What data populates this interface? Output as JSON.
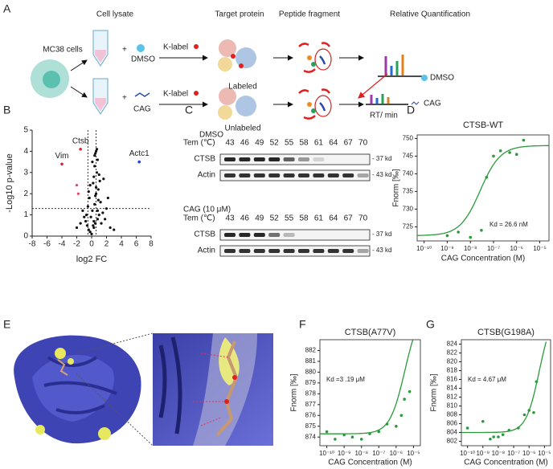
{
  "panel_labels": [
    "A",
    "B",
    "C",
    "D",
    "E",
    "F",
    "G"
  ],
  "schematic": {
    "cell_lysate": "Cell lysate",
    "target_protein": "Target protein",
    "peptide_fragment": "Peptide fragment",
    "relative_quantification": "Relative Quantification",
    "cells": "MC38  cells",
    "dmso": "DMSO",
    "cag": "CAG",
    "k_label_1": "K-label",
    "k_label_2": "K-label",
    "labeled": "Labeled",
    "unlabeled": "Unlabeled",
    "dmso_right": "DMSO",
    "cag_right": "CAG",
    "rt": "RT/ min"
  },
  "blot": {
    "tem_label": "Tem (℃)",
    "temperatures": [
      43,
      46,
      49,
      52,
      55,
      58,
      61,
      64,
      67,
      70
    ],
    "conditions": [
      {
        "label": "DMSO",
        "rows": [
          {
            "name": "CTSB",
            "size": "- 37 kd"
          },
          {
            "name": "Actin",
            "size": "- 43 kd"
          }
        ]
      },
      {
        "label": "CAG (10 μM)",
        "rows": [
          {
            "name": "CTSB",
            "size": "- 37 kd"
          },
          {
            "name": "Actin",
            "size": "- 43 kd"
          }
        ]
      }
    ]
  },
  "chart_data": [
    {
      "type": "scatter",
      "xlabel": "log2 FC",
      "ylabel": "-Log10 p-value",
      "xlim": [
        -8,
        8
      ],
      "ylim": [
        0,
        5
      ],
      "xticks": [
        -8,
        -6,
        -4,
        -2,
        0,
        2,
        4,
        6,
        8
      ],
      "yticks": [
        0,
        1,
        2,
        3,
        4,
        5
      ],
      "guides": {
        "x": [
          -0.5,
          0.6
        ],
        "y": 1.3
      },
      "series": [
        {
          "color": "#111111",
          "x": [
            -0.2,
            0.3,
            0.5,
            -0.4,
            0.8,
            1.0,
            -0.6,
            0.1,
            0.4,
            -0.1,
            0.6,
            1.2,
            -0.8,
            0.2,
            0.9,
            -0.3,
            0.7,
            1.5,
            -1.0,
            0.0,
            0.5,
            0.3,
            -0.5,
            1.1,
            0.8,
            2.0,
            -1.2,
            0.4,
            0.6,
            -0.2,
            1.3,
            0.2,
            0.9,
            -0.7,
            1.8,
            2.5,
            -1.5,
            3.0,
            0.7,
            0.4,
            0.1,
            1.0,
            0.6,
            -0.4,
            0.8,
            0.3,
            2.2,
            -2.0,
            1.6,
            0.5
          ],
          "values": [
            0.2,
            0.4,
            0.6,
            0.3,
            0.8,
            1.0,
            0.5,
            1.2,
            1.5,
            0.9,
            2.0,
            1.6,
            0.7,
            2.5,
            2.2,
            1.8,
            3.0,
            1.1,
            0.9,
            0.1,
            1.9,
            2.8,
            1.4,
            2.6,
            3.6,
            1.3,
            1.2,
            3.3,
            4.0,
            2.4,
            0.6,
            0.5,
            1.7,
            1.0,
            0.8,
            0.4,
            0.6,
            0.3,
            4.1,
            3.8,
            3.5,
            2.9,
            2.3,
            2.1,
            1.2,
            0.7,
            1.8,
            0.4,
            2.7,
            3.9
          ]
        },
        {
          "color": "#e8446a",
          "x": [
            -2.0,
            -1.8
          ],
          "values": [
            2.4,
            2.0
          ]
        }
      ],
      "annotations": [
        {
          "text": "Actc1",
          "x": 6.4,
          "y": 3.5,
          "color": "#2b3fd4"
        },
        {
          "text": "Ctsb",
          "x": -1.5,
          "y": 4.1,
          "color": "#e02030"
        },
        {
          "text": "Vim",
          "x": -4.0,
          "y": 3.4,
          "color": "#e02030"
        }
      ]
    },
    {
      "type": "binding",
      "title": "CTSB-WT",
      "xlabel": "CAG Concentration (M)",
      "ylabel": "Fnorm [‰]",
      "xscale": "log",
      "xlim": [
        5e-11,
        2.5e-05
      ],
      "ylim": [
        721,
        751
      ],
      "xticks": [
        {
          "value": 1e-10,
          "label": "10⁻¹⁰"
        },
        {
          "value": 1e-09,
          "label": "10⁻⁹"
        },
        {
          "value": 1e-08,
          "label": "10⁻⁸"
        },
        {
          "value": 1e-07,
          "label": "10⁻⁷"
        },
        {
          "value": 1e-06,
          "label": "10⁻⁶"
        },
        {
          "value": 1e-05,
          "label": "10⁻⁵"
        }
      ],
      "yticks": [
        725,
        730,
        735,
        740,
        745,
        750
      ],
      "series": [
        {
          "color": "#2a9a3a",
          "x": [
            1e-09,
            3e-09,
            1e-08,
            3e-08,
            5e-08,
            1e-07,
            2e-07,
            5e-07,
            1e-06,
            2e-06
          ],
          "values": [
            722.5,
            723.5,
            722,
            724,
            739,
            745,
            746.5,
            746,
            745.5,
            749.5
          ]
        }
      ],
      "fit": {
        "bottom": 722.5,
        "top": 748,
        "kd": 2.66e-08,
        "color": "#2a9a3a"
      },
      "annotation": "Kd = 26.6 nM"
    },
    {
      "type": "binding",
      "title": "CTSB(A77V)",
      "xlabel": "CAG Concentration (M)",
      "ylabel": "Fnorm [‰]",
      "xscale": "log",
      "xlim": [
        4e-11,
        2.5e-05
      ],
      "ylim": [
        873.2,
        883
      ],
      "xticks": [
        {
          "value": 1e-10,
          "label": "10⁻¹⁰"
        },
        {
          "value": 1e-09,
          "label": "10⁻⁹"
        },
        {
          "value": 1e-08,
          "label": "10⁻⁸"
        },
        {
          "value": 1e-07,
          "label": "10⁻⁷"
        },
        {
          "value": 1e-06,
          "label": "10⁻⁶"
        },
        {
          "value": 1e-05,
          "label": "10⁻⁵"
        }
      ],
      "yticks": [
        874,
        875,
        876,
        877,
        878,
        879,
        880,
        881,
        882
      ],
      "series": [
        {
          "color": "#2a9a3a",
          "x": [
            1e-10,
            3e-10,
            1e-09,
            3e-09,
            1e-08,
            3e-08,
            1e-07,
            3e-07,
            1e-06,
            2e-06,
            3e-06,
            6e-06
          ],
          "values": [
            874.5,
            873.8,
            874.2,
            874,
            873.8,
            874.3,
            874.5,
            875.2,
            875,
            876,
            877.5,
            878.2
          ]
        }
      ],
      "fit": {
        "bottom": 874.3,
        "top": 886,
        "kd": 3.19e-06,
        "color": "#2a9a3a"
      },
      "annotation": "Kd =3 .19 μM"
    },
    {
      "type": "binding",
      "title": "CTSB(G198A)",
      "xlabel": "CAG Concentration (M)",
      "ylabel": "Fnorm [‰]",
      "xscale": "log",
      "xlim": [
        4e-11,
        2.5e-05
      ],
      "ylim": [
        801,
        825
      ],
      "xticks": [
        {
          "value": 1e-10,
          "label": "10⁻¹⁰"
        },
        {
          "value": 1e-09,
          "label": "10⁻⁹"
        },
        {
          "value": 1e-08,
          "label": "10⁻⁸"
        },
        {
          "value": 1e-07,
          "label": "10⁻⁷"
        },
        {
          "value": 1e-06,
          "label": "10⁻⁶"
        },
        {
          "value": 1e-05,
          "label": "10⁻⁵"
        }
      ],
      "yticks": [
        802,
        804,
        806,
        808,
        810,
        812,
        814,
        816,
        818,
        820,
        822,
        824
      ],
      "series": [
        {
          "color": "#2a9a3a",
          "x": [
            1e-10,
            1e-09,
            3e-09,
            5e-09,
            1e-08,
            2e-08,
            5e-08,
            2e-07,
            5e-07,
            1e-06,
            2e-06,
            3e-06
          ],
          "values": [
            805,
            806.5,
            802.5,
            803,
            803,
            803.5,
            804.5,
            805,
            808,
            809,
            808.5,
            815.5
          ]
        }
      ],
      "fit": {
        "bottom": 804,
        "top": 832,
        "kd": 4.67e-06,
        "color": "#2a9a3a"
      },
      "annotation": "Kd = 4.67 μM"
    }
  ]
}
